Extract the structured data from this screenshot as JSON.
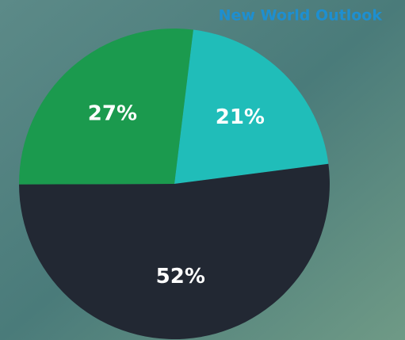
{
  "chart_data": {
    "type": "pie",
    "title": "New World Outlook",
    "values": [
      21,
      52,
      27
    ],
    "value_labels": [
      "21%",
      "52%",
      "27%"
    ],
    "colors": [
      "#20bdb9",
      "#222833",
      "#1b9a4e"
    ]
  }
}
